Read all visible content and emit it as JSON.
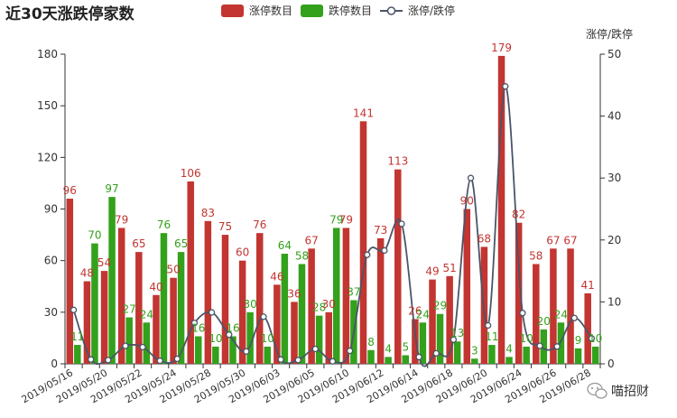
{
  "chart_data": {
    "type": "bar",
    "title": "近30天涨跌停家数",
    "legend": [
      "涨停数目",
      "跌停数目",
      "涨停/跌停"
    ],
    "legend_position": "top-center",
    "colors": {
      "up": "#c23531",
      "down": "#33a11b",
      "ratio": "#4a5568"
    },
    "categories": [
      "2019/05/16",
      "2019/05/17",
      "2019/05/20",
      "2019/05/21",
      "2019/05/22",
      "2019/05/23",
      "2019/05/24",
      "2019/05/27",
      "2019/05/28",
      "2019/05/29",
      "2019/05/30",
      "2019/05/31",
      "2019/06/03",
      "2019/06/04",
      "2019/06/05",
      "2019/06/06",
      "2019/06/10",
      "2019/06/11",
      "2019/06/12",
      "2019/06/13",
      "2019/06/14",
      "2019/06/17",
      "2019/06/18",
      "2019/06/19",
      "2019/06/20",
      "2019/06/21",
      "2019/06/24",
      "2019/06/25",
      "2019/06/26",
      "2019/06/27",
      "2019/06/28"
    ],
    "series": [
      {
        "name": "涨停数目",
        "axis": "left",
        "values": [
          96,
          48,
          54,
          79,
          65,
          40,
          50,
          106,
          83,
          75,
          60,
          76,
          46,
          36,
          67,
          30,
          79,
          141,
          73,
          113,
          26,
          49,
          51,
          90,
          68,
          179,
          82,
          58,
          67,
          67,
          41
        ]
      },
      {
        "name": "跌停数目",
        "axis": "left",
        "values": [
          11,
          70,
          97,
          27,
          24,
          76,
          65,
          16,
          10,
          16,
          30,
          10,
          64,
          58,
          28,
          79,
          37,
          8,
          4,
          5,
          24,
          29,
          13,
          3,
          11,
          4,
          10,
          20,
          24,
          9,
          10
        ]
      },
      {
        "name": "涨停/跌停",
        "type": "line",
        "axis": "right",
        "values": [
          8.7,
          0.7,
          0.6,
          2.9,
          2.7,
          0.5,
          0.8,
          6.6,
          8.3,
          4.7,
          2.0,
          7.6,
          0.7,
          0.6,
          2.4,
          0.4,
          2.1,
          17.6,
          18.3,
          22.6,
          1.1,
          1.7,
          3.9,
          30.0,
          6.2,
          44.8,
          8.2,
          2.9,
          2.8,
          7.4,
          4.1
        ]
      }
    ],
    "y_left": {
      "min": 0,
      "max": 180,
      "ticks": [
        0,
        30,
        60,
        90,
        120,
        150,
        180
      ]
    },
    "y_right": {
      "name": "涨停/跌停",
      "min": 0,
      "max": 50,
      "ticks": [
        0,
        10,
        20,
        30,
        40,
        50
      ]
    },
    "x_tick_labels": [
      "2019/05/16",
      "2019/05/20",
      "2019/05/22",
      "2019/05/24",
      "2019/05/28",
      "2019/05/30",
      "2019/06/03",
      "2019/06/05",
      "2019/06/10",
      "2019/06/12",
      "2019/06/14",
      "2019/06/18",
      "2019/06/20",
      "2019/06/24",
      "2019/06/26",
      "2019/06/28"
    ]
  },
  "watermark": {
    "icon": "wechat-icon",
    "text": "喵招财"
  }
}
